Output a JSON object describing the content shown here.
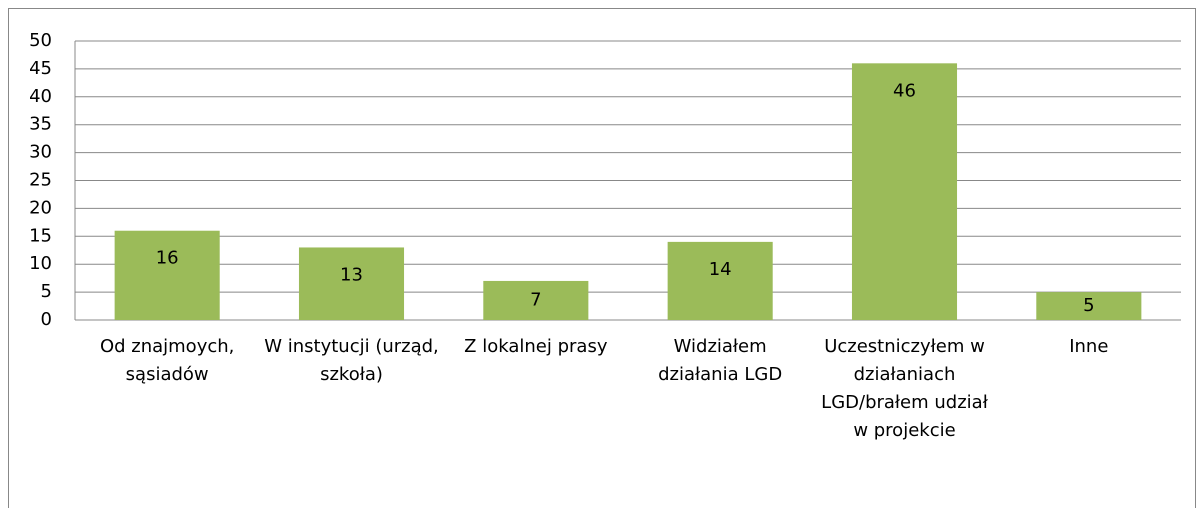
{
  "chart_data": {
    "type": "bar",
    "categories": [
      "Od znajmoych, sąsiadów",
      "W instytucji (urząd, szkoła)",
      "Z lokalnej prasy",
      "Widziałem działania LGD",
      "Uczestniczyłem w działaniach LGD/brałem udział w projekcie",
      "Inne"
    ],
    "values": [
      16,
      13,
      7,
      14,
      46,
      5
    ],
    "color": "#9bbb59",
    "ylim": [
      0,
      50
    ],
    "yticks": [
      0,
      5,
      10,
      15,
      20,
      25,
      30,
      35,
      40,
      45,
      50
    ],
    "grid": true
  }
}
